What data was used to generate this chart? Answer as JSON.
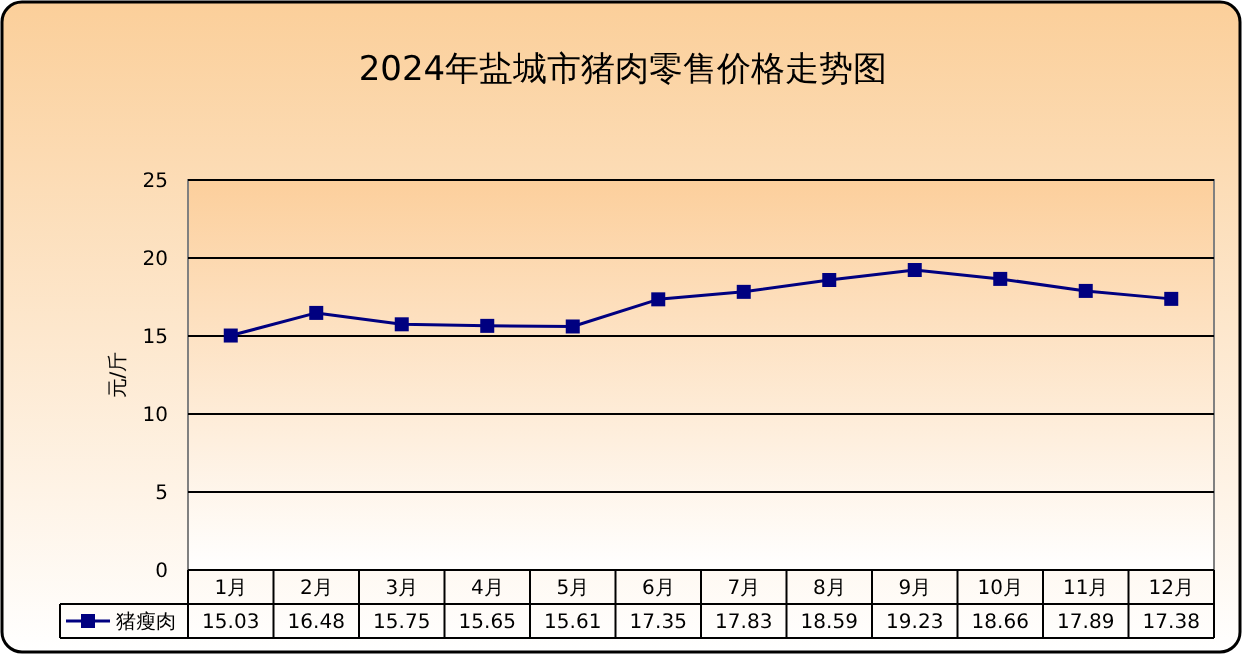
{
  "chart_data": {
    "type": "line",
    "title": "2024年盐城市猪肉零售价格走势图",
    "ylabel": "元/斤",
    "categories": [
      "1月",
      "2月",
      "3月",
      "4月",
      "5月",
      "6月",
      "7月",
      "8月",
      "9月",
      "10月",
      "11月",
      "12月"
    ],
    "series": [
      {
        "name": "猪瘦肉",
        "color": "#000080",
        "values": [
          15.03,
          16.48,
          15.75,
          15.65,
          15.61,
          17.35,
          17.83,
          18.59,
          19.23,
          18.66,
          17.89,
          17.38
        ]
      }
    ],
    "ylim": [
      0,
      25
    ],
    "yticks": [
      0,
      5,
      10,
      15,
      20,
      25
    ],
    "grid": "y",
    "marker": "square",
    "line_style": "solid",
    "legend": "bottom left",
    "data_labels": true
  }
}
